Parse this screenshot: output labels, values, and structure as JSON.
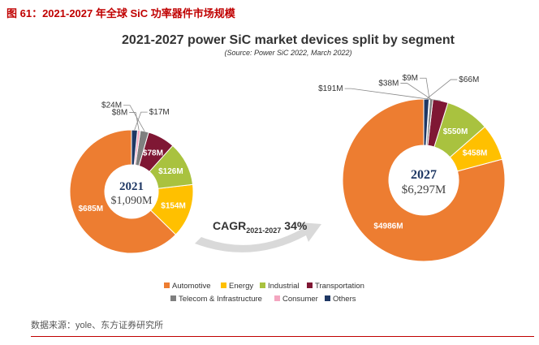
{
  "figure_title": "图 61：2021-2027 年全球 SiC 功率器件市场规模",
  "source_note": "数据来源：yole、东方证券研究所",
  "colors": {
    "Automotive": "#ed7d31",
    "Energy": "#ffc000",
    "Industrial": "#a9c23f",
    "Transportation": "#7f1734",
    "Telecom & Infrastructure": "#7f7f7f",
    "Consumer": "#f4a6c0",
    "Others": "#1f3864"
  },
  "chart_data": [
    {
      "type": "pie",
      "title": "2021-2027 power SiC market devices split by segment",
      "subtitle": "(Source: Power SiC 2022, March 2022)",
      "center_year": "2021",
      "center_total": "$1,090M",
      "categories": [
        "Automotive",
        "Energy",
        "Industrial",
        "Transportation",
        "Telecom & Infrastructure",
        "Consumer",
        "Others"
      ],
      "values": [
        685,
        154,
        126,
        78,
        24,
        8,
        17
      ],
      "labels": [
        "$685M",
        "$154M",
        "$126M",
        "$78M",
        "$24M",
        "$8M",
        "$17M"
      ],
      "unit": "M USD"
    },
    {
      "type": "pie",
      "center_year": "2027",
      "center_total": "$6,297M",
      "categories": [
        "Automotive",
        "Energy",
        "Industrial",
        "Transportation",
        "Telecom & Infrastructure",
        "Consumer",
        "Others"
      ],
      "values": [
        4986,
        458,
        550,
        191,
        38,
        9,
        66
      ],
      "labels": [
        "$4986M",
        "$458M",
        "$550M",
        "$191M",
        "$38M",
        "$9M",
        "$66M"
      ],
      "unit": "M USD"
    }
  ],
  "cagr": {
    "label": "CAGR",
    "period": "2021-2027",
    "value": "34%"
  },
  "legend": {
    "position": "bottom",
    "items": [
      "Automotive",
      "Energy",
      "Industrial",
      "Transportation",
      "Telecom & Infrastructure",
      "Consumer",
      "Others"
    ]
  }
}
